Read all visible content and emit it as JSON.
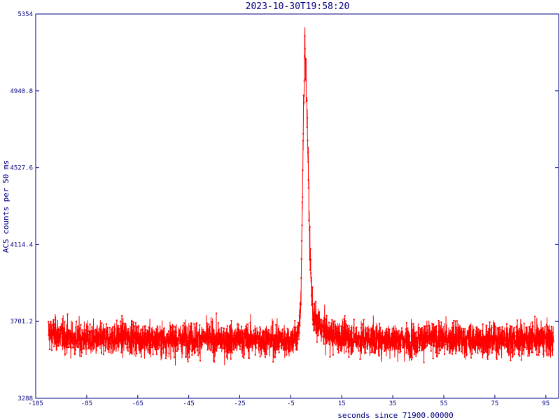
{
  "chart_data": {
    "type": "line",
    "title": "2023-10-30T19:58:20",
    "xlabel": "seconds since 71900.00000",
    "ylabel": "ACS counts per 50 ms",
    "xlim": [
      -105,
      100
    ],
    "ylim": [
      3288,
      5354
    ],
    "x_ticks": [
      -105,
      -85,
      -65,
      -45,
      -25,
      -5,
      15,
      35,
      55,
      75,
      95
    ],
    "x_tick_labels": [
      "-105",
      "-85",
      "-65",
      "-45",
      "-25",
      "-5",
      "15",
      "35",
      "55",
      "75",
      "95"
    ],
    "y_ticks": [
      3288,
      3701.2,
      4114.4,
      4527.6,
      4940.8,
      5354
    ],
    "y_tick_labels": [
      "3288",
      "3701.2",
      "4114.4",
      "4527.6",
      "4940.8",
      "5354"
    ],
    "colors": {
      "series": "#ff0000",
      "axes": "#000080"
    },
    "series": [
      {
        "step": 0.05,
        "x_start": -100,
        "x_end": 98,
        "baseline_mean": 3605,
        "baseline_noise_range": [
          3470,
          3790
        ],
        "peak_x": 0.5,
        "peak_y": 5250,
        "points": [
          [
            -100,
            3640
          ],
          [
            -90,
            3610
          ],
          [
            -80,
            3600
          ],
          [
            -70,
            3620
          ],
          [
            -60,
            3600
          ],
          [
            -50,
            3605
          ],
          [
            -40,
            3610
          ],
          [
            -30,
            3600
          ],
          [
            -20,
            3605
          ],
          [
            -10,
            3600
          ],
          [
            -5,
            3600
          ],
          [
            -3,
            3610
          ],
          [
            -2,
            3640
          ],
          [
            -1.5,
            3700
          ],
          [
            -1,
            3850
          ],
          [
            -0.5,
            4300
          ],
          [
            0,
            4800
          ],
          [
            0.3,
            5000
          ],
          [
            0.5,
            5250
          ],
          [
            0.8,
            5100
          ],
          [
            1.2,
            4900
          ],
          [
            1.6,
            4700
          ],
          [
            2,
            4400
          ],
          [
            2.5,
            4100
          ],
          [
            3,
            3900
          ],
          [
            3.5,
            3780
          ],
          [
            4,
            3720
          ],
          [
            5,
            3690
          ],
          [
            6,
            3680
          ],
          [
            8,
            3650
          ],
          [
            10,
            3630
          ],
          [
            15,
            3620
          ],
          [
            20,
            3610
          ],
          [
            30,
            3605
          ],
          [
            40,
            3600
          ],
          [
            50,
            3610
          ],
          [
            60,
            3605
          ],
          [
            70,
            3600
          ],
          [
            80,
            3605
          ],
          [
            90,
            3610
          ],
          [
            98,
            3600
          ]
        ]
      }
    ]
  }
}
